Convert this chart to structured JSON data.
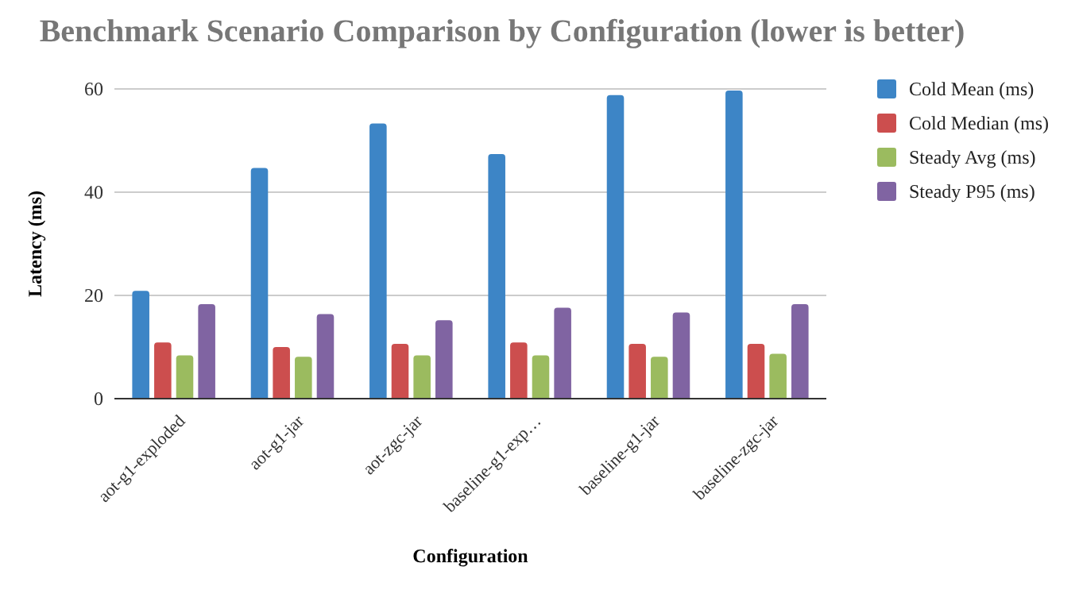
{
  "chart_data": {
    "type": "bar",
    "title": "Benchmark Scenario Comparison by Configuration (lower is better)",
    "xlabel": "Configuration",
    "ylabel": "Latency (ms)",
    "categories": [
      "aot-g1-exploded",
      "aot-g1-jar",
      "aot-zgc-jar",
      "baseline-g1-exp…",
      "baseline-g1-jar",
      "baseline-zgc-jar"
    ],
    "series": [
      {
        "name": "Cold Mean (ms)",
        "color": "#3d85c6",
        "values": [
          20.9,
          44.7,
          53.3,
          47.4,
          58.8,
          59.7
        ]
      },
      {
        "name": "Cold Median (ms)",
        "color": "#cc4e4e",
        "values": [
          10.9,
          10.0,
          10.6,
          10.9,
          10.6,
          10.6
        ]
      },
      {
        "name": "Steady Avg (ms)",
        "color": "#9bbb5f",
        "values": [
          8.4,
          8.1,
          8.4,
          8.4,
          8.1,
          8.7
        ]
      },
      {
        "name": "Steady P95 (ms)",
        "color": "#8064a2",
        "values": [
          18.3,
          16.4,
          15.2,
          17.6,
          16.7,
          18.3
        ]
      }
    ],
    "ylim": [
      0,
      60
    ],
    "yticks": [
      0,
      20,
      40,
      60
    ],
    "grid": "y",
    "legend": "right"
  }
}
